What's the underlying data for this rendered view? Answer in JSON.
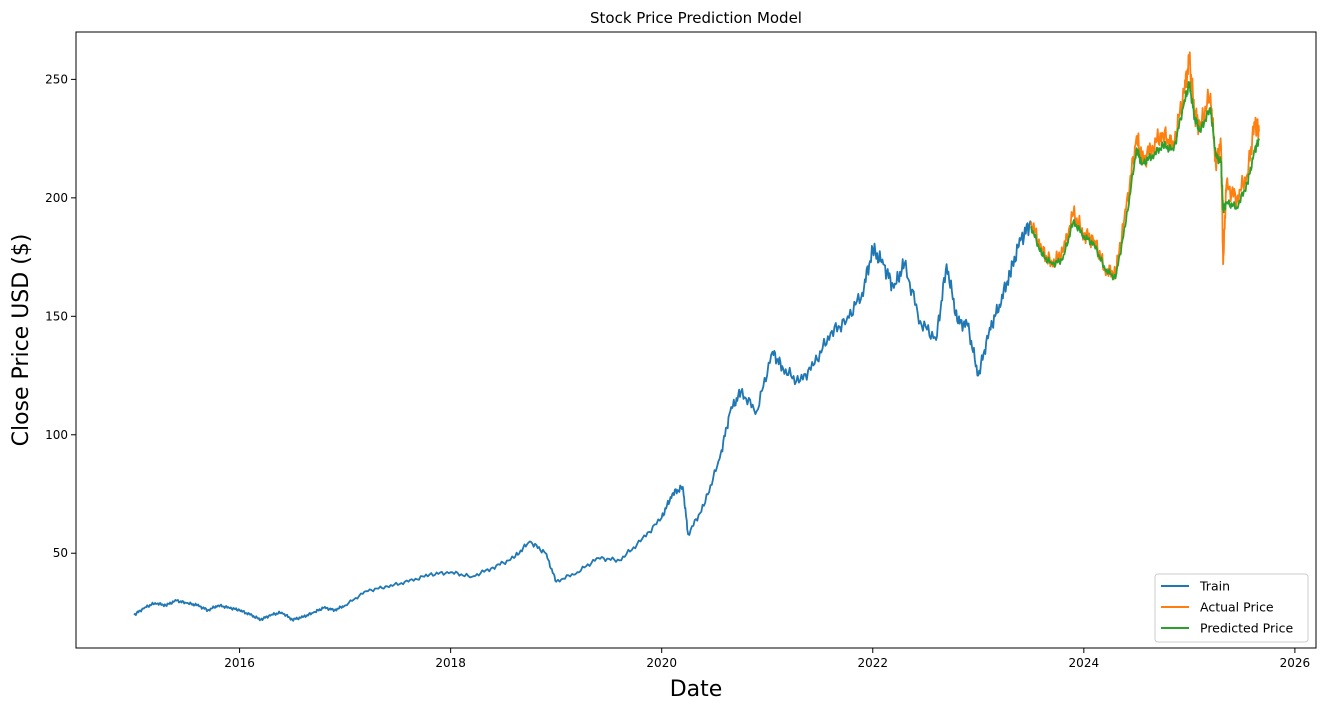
{
  "chart_data": {
    "type": "line",
    "title": "Stock Price Prediction Model",
    "xlabel": "Date",
    "ylabel": "Close Price USD ($)",
    "xlim": [
      2014.45,
      2026.2
    ],
    "ylim": [
      10,
      270
    ],
    "x_ticks": [
      2016,
      2018,
      2020,
      2022,
      2024,
      2026
    ],
    "x_tick_labels": [
      "2016",
      "2018",
      "2020",
      "2022",
      "2024",
      "2026"
    ],
    "y_ticks": [
      50,
      100,
      150,
      200,
      250
    ],
    "y_tick_labels": [
      "50",
      "100",
      "150",
      "200",
      "250"
    ],
    "grid": false,
    "legend_position": "lower-right",
    "series": [
      {
        "name": "Train",
        "color": "#1f77b4",
        "x": [
          2015.0,
          2015.1,
          2015.2,
          2015.3,
          2015.4,
          2015.5,
          2015.6,
          2015.7,
          2015.8,
          2015.9,
          2016.0,
          2016.1,
          2016.2,
          2016.3,
          2016.4,
          2016.5,
          2016.6,
          2016.7,
          2016.8,
          2016.9,
          2017.0,
          2017.2,
          2017.4,
          2017.6,
          2017.8,
          2018.0,
          2018.2,
          2018.4,
          2018.6,
          2018.75,
          2018.9,
          2019.0,
          2019.2,
          2019.4,
          2019.6,
          2019.8,
          2020.0,
          2020.1,
          2020.2,
          2020.25,
          2020.4,
          2020.55,
          2020.65,
          2020.75,
          2020.9,
          2021.05,
          2021.15,
          2021.3,
          2021.45,
          2021.6,
          2021.75,
          2021.9,
          2022.0,
          2022.1,
          2022.2,
          2022.3,
          2022.45,
          2022.6,
          2022.7,
          2022.8,
          2022.9,
          2023.0,
          2023.1,
          2023.2,
          2023.3,
          2023.4,
          2023.5
        ],
        "y": [
          24,
          27,
          29,
          28,
          30,
          29,
          28,
          26,
          28,
          27,
          26,
          24,
          22,
          24,
          25,
          22,
          23,
          25,
          27,
          26,
          28,
          34,
          36,
          38,
          41,
          42,
          40,
          44,
          48,
          55,
          50,
          38,
          42,
          48,
          47,
          55,
          65,
          75,
          78,
          58,
          70,
          90,
          110,
          118,
          110,
          135,
          128,
          122,
          130,
          143,
          148,
          160,
          178,
          172,
          162,
          172,
          148,
          140,
          172,
          148,
          146,
          125,
          143,
          155,
          168,
          182,
          190
        ]
      },
      {
        "name": "Actual Price",
        "color": "#ff7f0e",
        "x": [
          2023.5,
          2023.6,
          2023.7,
          2023.8,
          2023.9,
          2024.0,
          2024.1,
          2024.2,
          2024.3,
          2024.4,
          2024.5,
          2024.55,
          2024.65,
          2024.75,
          2024.85,
          2024.95,
          2025.0,
          2025.05,
          2025.1,
          2025.2,
          2025.25,
          2025.3,
          2025.32,
          2025.35,
          2025.45,
          2025.55,
          2025.62,
          2025.66
        ],
        "y": [
          190,
          178,
          172,
          177,
          193,
          185,
          182,
          170,
          168,
          195,
          226,
          215,
          222,
          227,
          222,
          245,
          258,
          236,
          230,
          244,
          215,
          222,
          172,
          205,
          200,
          210,
          232,
          228
        ]
      },
      {
        "name": "Predicted Price",
        "color": "#2ca02c",
        "x": [
          2023.5,
          2023.6,
          2023.7,
          2023.8,
          2023.9,
          2024.0,
          2024.1,
          2024.2,
          2024.3,
          2024.4,
          2024.5,
          2024.55,
          2024.65,
          2024.75,
          2024.85,
          2024.95,
          2025.0,
          2025.05,
          2025.1,
          2025.2,
          2025.25,
          2025.3,
          2025.32,
          2025.35,
          2025.45,
          2025.55,
          2025.62,
          2025.66
        ],
        "y": [
          188,
          176,
          172,
          174,
          190,
          184,
          180,
          170,
          166,
          190,
          221,
          214,
          218,
          222,
          220,
          240,
          248,
          234,
          228,
          238,
          218,
          215,
          195,
          198,
          196,
          206,
          220,
          225
        ]
      }
    ]
  }
}
